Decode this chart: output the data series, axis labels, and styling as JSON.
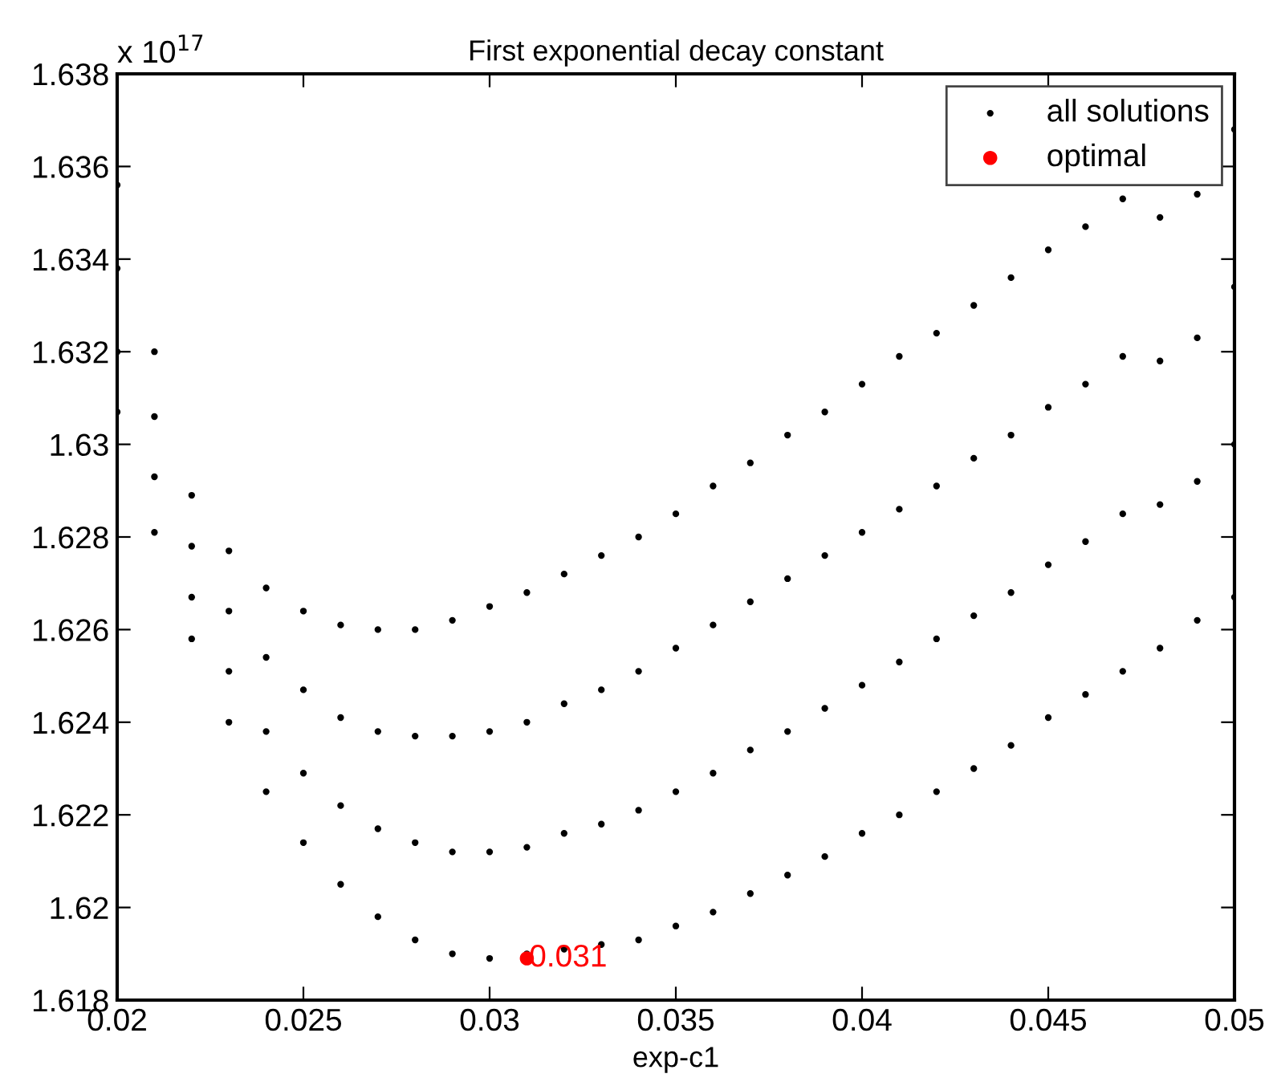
{
  "chart_data": {
    "type": "scatter",
    "title": "First exponential decay constant",
    "xlabel": "exp-c1",
    "xlim": [
      0.02,
      0.05
    ],
    "xticks": [
      0.02,
      0.025,
      0.03,
      0.035,
      0.04,
      0.045,
      0.05
    ],
    "ylim": [
      1.618,
      1.638
    ],
    "yticks": [
      1.618,
      1.62,
      1.622,
      1.624,
      1.626,
      1.628,
      1.63,
      1.632,
      1.634,
      1.636,
      1.638
    ],
    "grid": false,
    "legend": "top right",
    "marker": "circle",
    "annotations": [
      "x 10$^{17}$",
      {
        "text": "0.031",
        "x": 0.031,
        "y": 1.6189
      }
    ],
    "series": [
      {
        "name": "all solutions",
        "color": "#000000",
        "x": [
          0.02,
          0.02,
          0.02,
          0.02,
          0.021,
          0.021,
          0.021,
          0.021,
          0.022,
          0.022,
          0.022,
          0.022,
          0.023,
          0.023,
          0.023,
          0.023,
          0.024,
          0.024,
          0.024,
          0.024,
          0.025,
          0.025,
          0.025,
          0.025,
          0.026,
          0.026,
          0.026,
          0.026,
          0.027,
          0.027,
          0.027,
          0.027,
          0.028,
          0.028,
          0.028,
          0.028,
          0.029,
          0.029,
          0.029,
          0.029,
          0.03,
          0.03,
          0.03,
          0.03,
          0.031,
          0.031,
          0.031,
          0.031,
          0.032,
          0.032,
          0.032,
          0.032,
          0.033,
          0.033,
          0.033,
          0.033,
          0.034,
          0.034,
          0.034,
          0.034,
          0.035,
          0.035,
          0.035,
          0.035,
          0.036,
          0.036,
          0.036,
          0.036,
          0.037,
          0.037,
          0.037,
          0.037,
          0.038,
          0.038,
          0.038,
          0.038,
          0.039,
          0.039,
          0.039,
          0.039,
          0.04,
          0.04,
          0.04,
          0.04,
          0.041,
          0.041,
          0.041,
          0.041,
          0.042,
          0.042,
          0.042,
          0.042,
          0.043,
          0.043,
          0.043,
          0.043,
          0.044,
          0.044,
          0.044,
          0.044,
          0.045,
          0.045,
          0.045,
          0.045,
          0.046,
          0.046,
          0.046,
          0.046,
          0.047,
          0.047,
          0.047,
          0.047,
          0.048,
          0.048,
          0.048,
          0.048,
          0.049,
          0.049,
          0.049,
          0.049,
          0.05,
          0.05,
          0.05,
          0.05
        ],
        "values": [
          1.6356,
          1.6338,
          1.632,
          1.6307,
          1.632,
          1.6306,
          1.6293,
          1.6281,
          1.6289,
          1.6278,
          1.6267,
          1.6258,
          1.6277,
          1.6264,
          1.6251,
          1.624,
          1.6269,
          1.6254,
          1.6238,
          1.6225,
          1.6264,
          1.6247,
          1.6229,
          1.6214,
          1.6261,
          1.6241,
          1.6222,
          1.6205,
          1.626,
          1.6238,
          1.6217,
          1.6198,
          1.626,
          1.6237,
          1.6214,
          1.6193,
          1.6262,
          1.6237,
          1.6212,
          1.619,
          1.6265,
          1.6238,
          1.6212,
          1.6189,
          1.6268,
          1.624,
          1.6213,
          1.619,
          1.6272,
          1.6244,
          1.6216,
          1.6191,
          1.6276,
          1.6247,
          1.6218,
          1.6192,
          1.628,
          1.6251,
          1.6221,
          1.6193,
          1.6285,
          1.6256,
          1.6225,
          1.6196,
          1.6291,
          1.6261,
          1.6229,
          1.6199,
          1.6296,
          1.6266,
          1.6234,
          1.6203,
          1.6302,
          1.6271,
          1.6238,
          1.6207,
          1.6307,
          1.6276,
          1.6243,
          1.6211,
          1.6313,
          1.6281,
          1.6248,
          1.6216,
          1.6319,
          1.6286,
          1.6253,
          1.622,
          1.6324,
          1.6291,
          1.6258,
          1.6225,
          1.633,
          1.6297,
          1.6263,
          1.623,
          1.6336,
          1.6302,
          1.6268,
          1.6235,
          1.6342,
          1.6308,
          1.6274,
          1.6241,
          1.6347,
          1.6313,
          1.6279,
          1.6246,
          1.6353,
          1.6319,
          1.6285,
          1.6251,
          1.6349,
          1.6318,
          1.6287,
          1.6256,
          1.6354,
          1.6323,
          1.6292,
          1.6262,
          1.6368,
          1.6334,
          1.63,
          1.6267
        ]
      },
      {
        "name": "optimal",
        "color": "#ff0000",
        "x": [
          0.031
        ],
        "values": [
          1.6189
        ]
      }
    ]
  }
}
